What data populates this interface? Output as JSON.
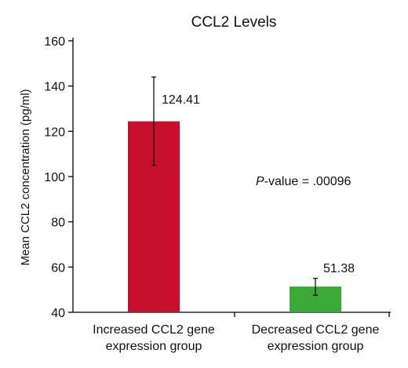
{
  "chart_data": {
    "type": "bar",
    "title": "CCL2 Levels",
    "ylabel": "Mean CCL2 concentration (pg/ml)",
    "xlabel": "",
    "ylim": [
      40,
      160
    ],
    "yticks": [
      40,
      60,
      80,
      100,
      120,
      140,
      160
    ],
    "categories": [
      [
        "Increased CCL2 gene",
        "expression group"
      ],
      [
        "Decreased CCL2 gene",
        "expression group"
      ]
    ],
    "values": [
      124.41,
      51.38
    ],
    "value_labels": [
      "124.41",
      "51.38"
    ],
    "error_bars": [
      [
        105,
        144
      ],
      [
        47.5,
        55
      ]
    ],
    "colors": [
      "#c8102e",
      "#3aa935"
    ],
    "annotation": {
      "italic": "P",
      "text": "-value = .00096"
    },
    "grid": false,
    "legend": "none"
  }
}
